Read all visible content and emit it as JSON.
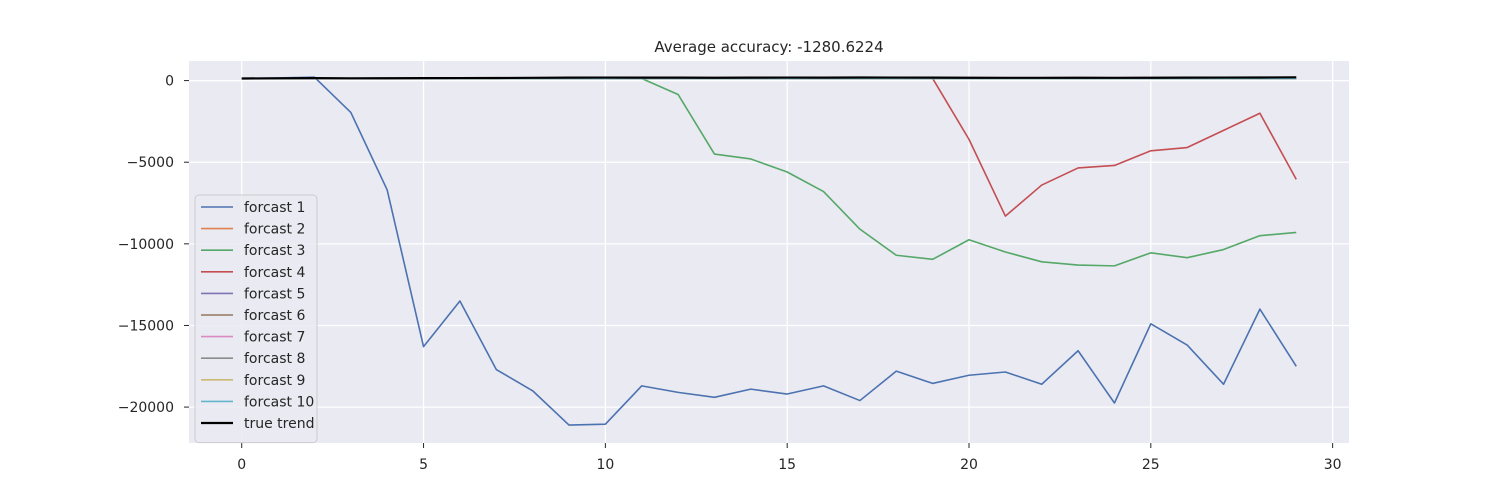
{
  "chart_data": {
    "type": "line",
    "title": "Average accuracy: -1280.6224",
    "xlabel": "",
    "ylabel": "",
    "xlim": [
      -1.45,
      30.45
    ],
    "ylim": [
      -22200,
      1200
    ],
    "x_ticks": [
      0,
      5,
      10,
      15,
      20,
      25,
      30
    ],
    "y_ticks": [
      0,
      -5000,
      -10000,
      -15000,
      -20000
    ],
    "y_tick_labels": [
      "0",
      "−5000",
      "−10000",
      "−15000",
      "−20000"
    ],
    "grid": true,
    "legend_position": "lower-left",
    "x": [
      0,
      1,
      2,
      3,
      4,
      5,
      6,
      7,
      8,
      9,
      10,
      11,
      12,
      13,
      14,
      15,
      16,
      17,
      18,
      19,
      20,
      21,
      22,
      23,
      24,
      25,
      26,
      27,
      28,
      29
    ],
    "series": [
      {
        "name": "forcast 1",
        "color": "#4c72b0",
        "values": [
          130,
          160,
          210,
          -1950,
          -6700,
          -16300,
          -13500,
          -17700,
          -19000,
          -21100,
          -21050,
          -18700,
          -19100,
          -19400,
          -18900,
          -19200,
          -18700,
          -19600,
          -17800,
          -18550,
          -18050,
          -17850,
          -18600,
          -16550,
          -19750,
          -14900,
          -16200,
          -18600,
          -14000,
          -17500
        ]
      },
      {
        "name": "forcast 2",
        "color": "#dd8452",
        "values": [
          130,
          130,
          130,
          130,
          130,
          130,
          130,
          130,
          130,
          130,
          130,
          130,
          130,
          130,
          130,
          130,
          130,
          130,
          130,
          130,
          130,
          130,
          130,
          130,
          130,
          130,
          130,
          130,
          130,
          130
        ]
      },
      {
        "name": "forcast 3",
        "color": "#55a868",
        "values": [
          130,
          130,
          130,
          130,
          130,
          130,
          130,
          130,
          130,
          130,
          130,
          130,
          -850,
          -4500,
          -4800,
          -5600,
          -6800,
          -9100,
          -10700,
          -10950,
          -9750,
          -10500,
          -11100,
          -11300,
          -11350,
          -10550,
          -10850,
          -10350,
          -9500,
          -9300
        ]
      },
      {
        "name": "forcast 4",
        "color": "#c44e52",
        "values": [
          130,
          130,
          130,
          130,
          130,
          130,
          130,
          130,
          130,
          130,
          130,
          130,
          130,
          130,
          130,
          130,
          130,
          130,
          130,
          130,
          -3600,
          -8300,
          -6400,
          -5350,
          -5200,
          -4300,
          -4100,
          -3050,
          -2000,
          -6050
        ]
      },
      {
        "name": "forcast 5",
        "color": "#8172b3",
        "values": [
          130,
          130,
          130,
          130,
          130,
          130,
          130,
          130,
          130,
          130,
          130,
          130,
          130,
          130,
          130,
          130,
          130,
          130,
          130,
          130,
          130,
          130,
          130,
          130,
          130,
          130,
          130,
          130,
          130,
          130
        ]
      },
      {
        "name": "forcast 6",
        "color": "#937860",
        "values": [
          130,
          130,
          130,
          130,
          130,
          130,
          130,
          130,
          130,
          130,
          130,
          130,
          130,
          130,
          130,
          130,
          130,
          130,
          130,
          130,
          130,
          130,
          130,
          130,
          130,
          130,
          130,
          130,
          130,
          130
        ]
      },
      {
        "name": "forcast 7",
        "color": "#da8bc3",
        "values": [
          130,
          130,
          130,
          130,
          130,
          130,
          130,
          130,
          130,
          130,
          130,
          130,
          130,
          130,
          130,
          130,
          130,
          130,
          130,
          130,
          130,
          130,
          130,
          130,
          130,
          130,
          130,
          130,
          130,
          130
        ]
      },
      {
        "name": "forcast 8",
        "color": "#8c8c8c",
        "values": [
          130,
          130,
          130,
          130,
          130,
          130,
          130,
          130,
          130,
          130,
          130,
          130,
          130,
          130,
          130,
          130,
          130,
          130,
          130,
          130,
          130,
          130,
          130,
          130,
          130,
          130,
          130,
          130,
          130,
          130
        ]
      },
      {
        "name": "forcast 9",
        "color": "#ccb974",
        "values": [
          130,
          130,
          130,
          130,
          130,
          130,
          130,
          130,
          130,
          130,
          130,
          130,
          130,
          130,
          130,
          130,
          130,
          130,
          130,
          130,
          130,
          130,
          130,
          130,
          130,
          130,
          130,
          130,
          130,
          130
        ]
      },
      {
        "name": "forcast 10",
        "color": "#64b5cd",
        "values": [
          130,
          130,
          130,
          130,
          130,
          130,
          130,
          130,
          130,
          130,
          130,
          130,
          130,
          130,
          130,
          130,
          130,
          130,
          130,
          130,
          130,
          130,
          130,
          130,
          130,
          130,
          130,
          130,
          130,
          130
        ]
      },
      {
        "name": "true trend",
        "color": "#000000",
        "values": [
          130,
          140,
          150,
          140,
          145,
          150,
          155,
          160,
          170,
          180,
          185,
          180,
          180,
          175,
          180,
          185,
          180,
          190,
          185,
          180,
          175,
          170,
          170,
          175,
          170,
          175,
          180,
          185,
          190,
          200
        ]
      }
    ],
    "colors": {
      "background": "#ffffff",
      "plot_background": "#eaeaf2",
      "grid": "#ffffff",
      "text": "#262626",
      "legend_background": "#eaeaf2",
      "legend_border": "#cccccc"
    }
  }
}
